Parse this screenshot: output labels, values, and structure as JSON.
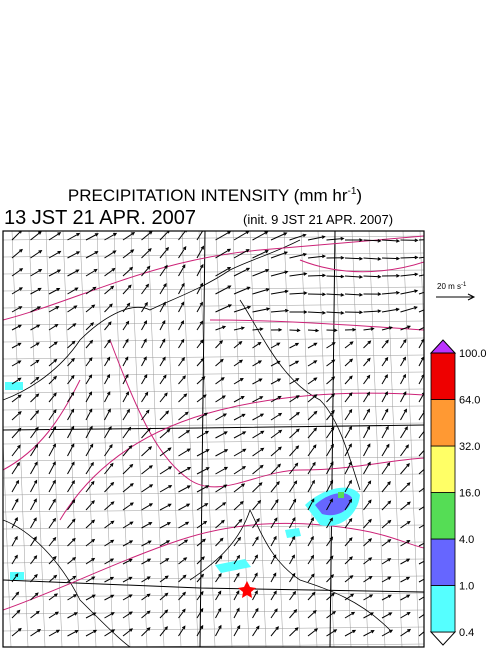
{
  "header": {
    "title": "PRECIPITATION INTENSITY (mm hr",
    "title_superscript": "-1",
    "title_suffix": ")",
    "valid_time": "13 JST 21 APR. 2007",
    "init_time": "(init. 9 JST 21 APR. 2007)"
  },
  "wind_reference": {
    "label": "20 m s",
    "superscript": "-1"
  },
  "colorbar": {
    "labels": [
      "0.4",
      "1.0",
      "4.0",
      "16.0",
      "32.0",
      "64.0",
      "100.0"
    ],
    "colors": [
      "#ffffff",
      "#55ffff",
      "#6666ff",
      "#55dd55",
      "#ffff66",
      "#ff9933",
      "#ee0000",
      "#bb33ff"
    ]
  }
}
